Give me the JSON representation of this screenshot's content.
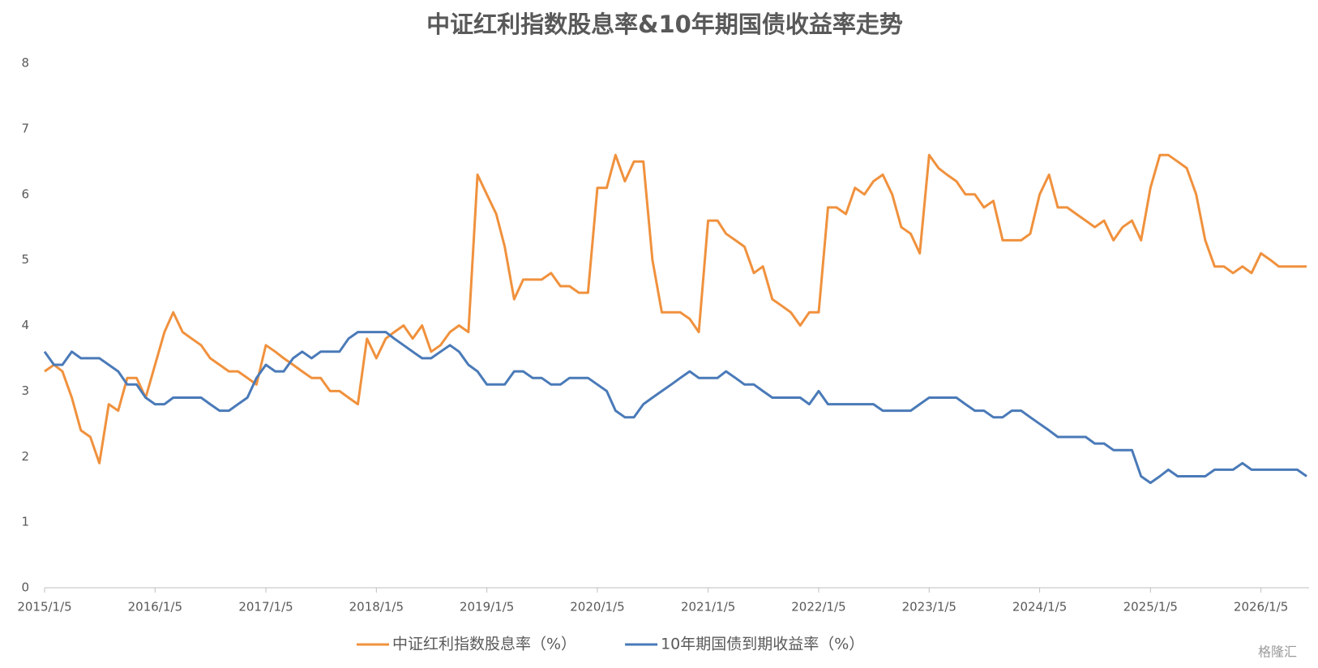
{
  "chart_data": {
    "type": "line",
    "title": "中证红利指数股息率&10年期国债收益率走势",
    "x": [
      "2015/1/5",
      "2015/2/5",
      "2015/3/5",
      "2015/4/5",
      "2015/5/5",
      "2015/6/5",
      "2015/7/5",
      "2015/8/5",
      "2015/9/5",
      "2015/10/5",
      "2015/11/5",
      "2015/12/5",
      "2016/1/5",
      "2016/2/5",
      "2016/3/5",
      "2016/4/5",
      "2016/5/5",
      "2016/6/5",
      "2016/7/5",
      "2016/8/5",
      "2016/9/5",
      "2016/10/5",
      "2016/11/5",
      "2016/12/5",
      "2017/1/5",
      "2017/2/5",
      "2017/3/5",
      "2017/4/5",
      "2017/5/5",
      "2017/6/5",
      "2017/7/5",
      "2017/8/5",
      "2017/9/5",
      "2017/10/5",
      "2017/11/5",
      "2017/12/5",
      "2018/1/5",
      "2018/2/5",
      "2018/3/5",
      "2018/4/5",
      "2018/5/5",
      "2018/6/5",
      "2018/7/5",
      "2018/8/5",
      "2018/9/5",
      "2018/10/5",
      "2018/11/5",
      "2018/12/5",
      "2019/1/5",
      "2019/2/5",
      "2019/3/5",
      "2019/4/5",
      "2019/5/5",
      "2019/6/5",
      "2019/7/5",
      "2019/8/5",
      "2019/9/5",
      "2019/10/5",
      "2019/11/5",
      "2019/12/5",
      "2020/1/5",
      "2020/2/5",
      "2020/3/5",
      "2020/4/5",
      "2020/5/5",
      "2020/6/5",
      "2020/7/5",
      "2020/8/5",
      "2020/9/5",
      "2020/10/5",
      "2020/11/5",
      "2020/12/5",
      "2021/1/5",
      "2021/2/5",
      "2021/3/5",
      "2021/4/5",
      "2021/5/5",
      "2021/6/5",
      "2021/7/5",
      "2021/8/5",
      "2021/9/5",
      "2021/10/5",
      "2021/11/5",
      "2021/12/5",
      "2022/1/5",
      "2022/2/5",
      "2022/3/5",
      "2022/4/5",
      "2022/5/5",
      "2022/6/5",
      "2022/7/5",
      "2022/8/5",
      "2022/9/5",
      "2022/10/5",
      "2022/11/5",
      "2022/12/5",
      "2023/1/5",
      "2023/2/5",
      "2023/3/5",
      "2023/4/5",
      "2023/5/5",
      "2023/6/5",
      "2023/7/5",
      "2023/8/5",
      "2023/9/5",
      "2023/10/5",
      "2023/11/5",
      "2023/12/5",
      "2024/1/5",
      "2024/2/5",
      "2024/3/5",
      "2024/4/5",
      "2024/5/5",
      "2024/6/5",
      "2024/7/5",
      "2024/8/5",
      "2024/9/5",
      "2024/10/5",
      "2024/11/5",
      "2024/12/5",
      "2025/1/5",
      "2025/2/5",
      "2025/3/5",
      "2025/4/5",
      "2025/5/5",
      "2025/6/5",
      "2025/7/5",
      "2025/8/5",
      "2025/9/5",
      "2025/10/5",
      "2025/11/5",
      "2025/12/5",
      "2026/1/5",
      "2026/2/5",
      "2026/3/5",
      "2026/4/5",
      "2026/5/5",
      "2026/6/5"
    ],
    "series": [
      {
        "name": "中证红利指数股息率（%）",
        "color": "#f0913d",
        "values": [
          3.3,
          3.4,
          3.3,
          2.9,
          2.4,
          2.3,
          1.9,
          2.8,
          2.7,
          3.2,
          3.2,
          2.9,
          3.4,
          3.9,
          4.2,
          3.9,
          3.8,
          3.7,
          3.5,
          3.4,
          3.3,
          3.3,
          3.2,
          3.1,
          3.7,
          3.6,
          3.5,
          3.4,
          3.3,
          3.2,
          3.2,
          3.0,
          3.0,
          2.9,
          2.8,
          3.8,
          3.5,
          3.8,
          3.9,
          4.0,
          3.8,
          4.0,
          3.6,
          3.7,
          3.9,
          4.0,
          3.9,
          6.3,
          6.0,
          5.7,
          5.2,
          4.4,
          4.7,
          4.7,
          4.7,
          4.8,
          4.6,
          4.6,
          4.5,
          4.5,
          6.1,
          6.1,
          6.6,
          6.2,
          6.5,
          6.5,
          5.0,
          4.2,
          4.2,
          4.2,
          4.1,
          3.9,
          5.6,
          5.6,
          5.4,
          5.3,
          5.2,
          4.8,
          4.9,
          4.4,
          4.3,
          4.2,
          4.0,
          4.2,
          4.2,
          5.8,
          5.8,
          5.7,
          6.1,
          6.0,
          6.2,
          6.3,
          6.0,
          5.5,
          5.4,
          5.1,
          6.6,
          6.4,
          6.3,
          6.2,
          6.0,
          6.0,
          5.8,
          5.9,
          5.3,
          5.3,
          5.3,
          5.4,
          6.0,
          6.3,
          5.8,
          5.8,
          5.7,
          5.6,
          5.5,
          5.6,
          5.3,
          5.5,
          5.6,
          5.3,
          6.1,
          6.6,
          6.6,
          6.5,
          6.4,
          6.0,
          5.3,
          4.9,
          4.9,
          4.8,
          4.9,
          4.8,
          5.1,
          5.0,
          4.9,
          4.9,
          4.9,
          4.9
        ]
      },
      {
        "name": "10年期国债到期收益率（%）",
        "color": "#4a7ab8",
        "values": [
          3.6,
          3.4,
          3.4,
          3.6,
          3.5,
          3.5,
          3.5,
          3.4,
          3.3,
          3.1,
          3.1,
          2.9,
          2.8,
          2.8,
          2.9,
          2.9,
          2.9,
          2.9,
          2.8,
          2.7,
          2.7,
          2.8,
          2.9,
          3.2,
          3.4,
          3.3,
          3.3,
          3.5,
          3.6,
          3.5,
          3.6,
          3.6,
          3.6,
          3.8,
          3.9,
          3.9,
          3.9,
          3.9,
          3.8,
          3.7,
          3.6,
          3.5,
          3.5,
          3.6,
          3.7,
          3.6,
          3.4,
          3.3,
          3.1,
          3.1,
          3.1,
          3.3,
          3.3,
          3.2,
          3.2,
          3.1,
          3.1,
          3.2,
          3.2,
          3.2,
          3.1,
          3.0,
          2.7,
          2.6,
          2.6,
          2.8,
          2.9,
          3.0,
          3.1,
          3.2,
          3.3,
          3.2,
          3.2,
          3.2,
          3.3,
          3.2,
          3.1,
          3.1,
          3.0,
          2.9,
          2.9,
          2.9,
          2.9,
          2.8,
          3.0,
          2.8,
          2.8,
          2.8,
          2.8,
          2.8,
          2.8,
          2.7,
          2.7,
          2.7,
          2.7,
          2.8,
          2.9,
          2.9,
          2.9,
          2.9,
          2.8,
          2.7,
          2.7,
          2.6,
          2.6,
          2.7,
          2.7,
          2.6,
          2.5,
          2.4,
          2.3,
          2.3,
          2.3,
          2.3,
          2.2,
          2.2,
          2.1,
          2.1,
          2.1,
          1.7,
          1.6,
          1.7,
          1.8,
          1.7,
          1.7,
          1.7,
          1.7,
          1.8,
          1.8,
          1.8,
          1.9,
          1.8,
          1.8,
          1.8,
          1.8,
          1.8,
          1.8,
          1.7
        ]
      }
    ],
    "xlim": [
      "2015/1/5",
      "2026/6/5"
    ],
    "xticks": [
      "2015/1/5",
      "2016/1/5",
      "2017/1/5",
      "2018/1/5",
      "2019/1/5",
      "2020/1/5",
      "2021/1/5",
      "2022/1/5",
      "2023/1/5",
      "2024/1/5",
      "2025/1/5",
      "2026/1/5"
    ],
    "ylim": [
      0,
      8
    ],
    "yticks": [
      0,
      1,
      2,
      3,
      4,
      5,
      6,
      7,
      8
    ],
    "grid": false,
    "legend": "bottom",
    "watermark": "格隆汇"
  }
}
